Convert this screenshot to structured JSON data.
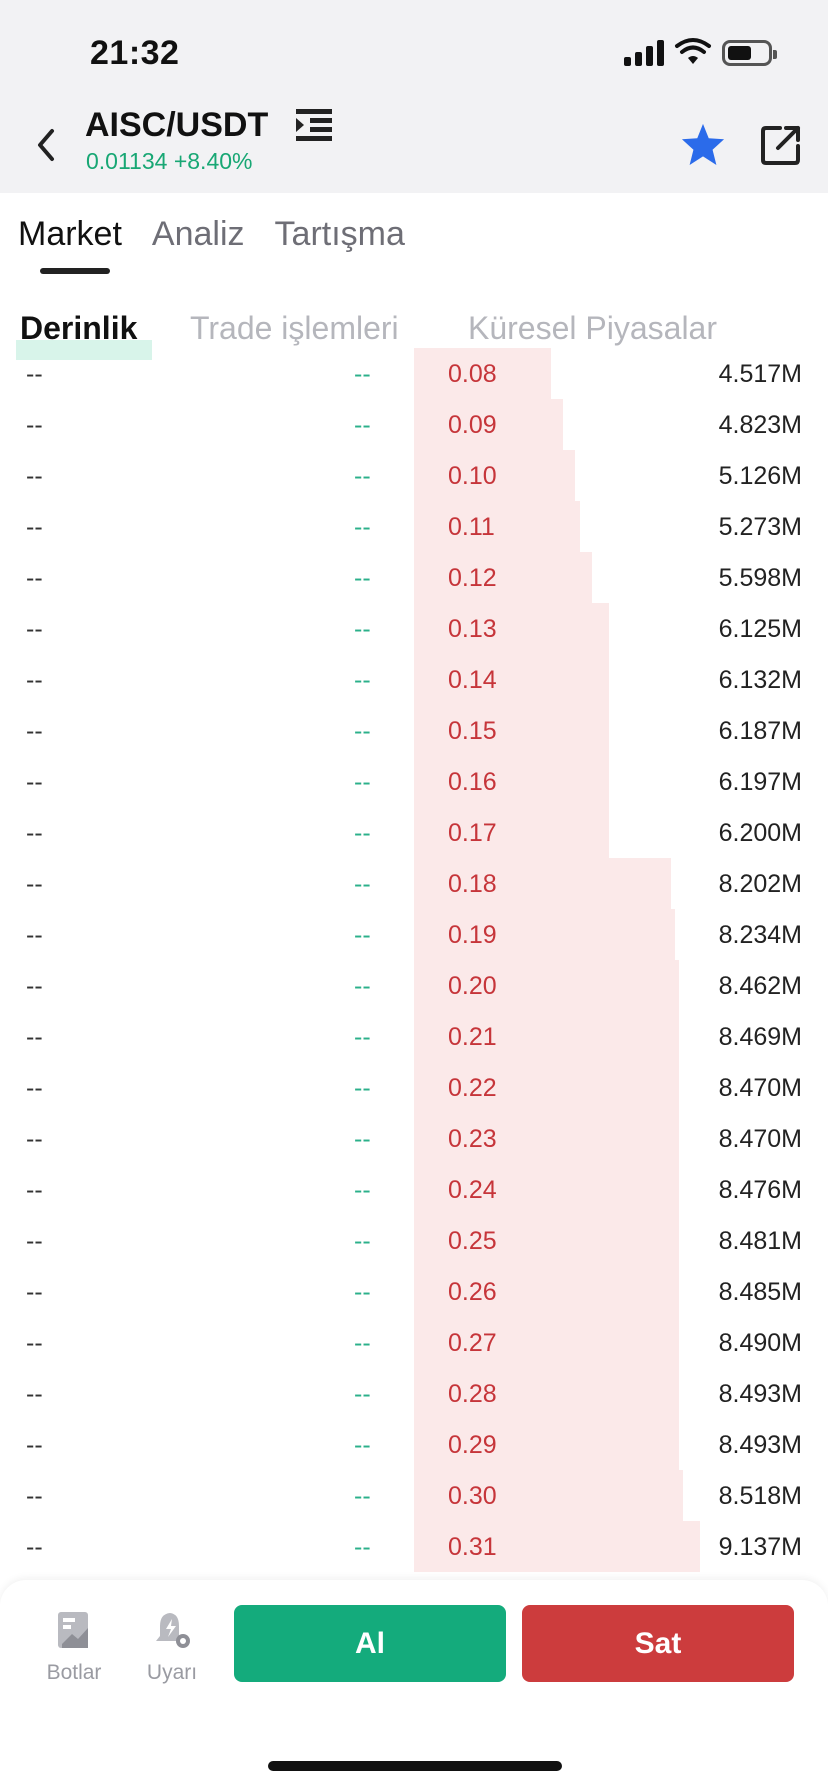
{
  "status_bar": {
    "time": "21:32"
  },
  "header": {
    "pair": "AISC/USDT",
    "price": "0.01134",
    "change": "+8.40%",
    "accent_green": "#18a774",
    "star_color": "#2b6bea"
  },
  "tabs": [
    {
      "label": "Market",
      "active": true
    },
    {
      "label": "Analiz",
      "active": false
    },
    {
      "label": "Tartışma",
      "active": false
    }
  ],
  "subtabs": [
    {
      "label": "Derinlik",
      "active": true
    },
    {
      "label": "Trade işlemleri",
      "active": false
    },
    {
      "label": "Küresel Piyasalar",
      "active": false
    }
  ],
  "depth": {
    "partial_top": {
      "price": "0.08",
      "amount": "4.517M"
    },
    "rows": [
      {
        "buy_amount": "--",
        "buy_price": "--",
        "price": "0.09",
        "amount": "4.823M",
        "depth_fill": 0.36
      },
      {
        "buy_amount": "--",
        "buy_price": "--",
        "price": "0.10",
        "amount": "5.126M",
        "depth_fill": 0.39
      },
      {
        "buy_amount": "--",
        "buy_price": "--",
        "price": "0.11",
        "amount": "5.273M",
        "depth_fill": 0.4
      },
      {
        "buy_amount": "--",
        "buy_price": "--",
        "price": "0.12",
        "amount": "5.598M",
        "depth_fill": 0.43
      },
      {
        "buy_amount": "--",
        "buy_price": "--",
        "price": "0.13",
        "amount": "6.125M",
        "depth_fill": 0.47
      },
      {
        "buy_amount": "--",
        "buy_price": "--",
        "price": "0.14",
        "amount": "6.132M",
        "depth_fill": 0.47
      },
      {
        "buy_amount": "--",
        "buy_price": "--",
        "price": "0.15",
        "amount": "6.187M",
        "depth_fill": 0.47
      },
      {
        "buy_amount": "--",
        "buy_price": "--",
        "price": "0.16",
        "amount": "6.197M",
        "depth_fill": 0.47
      },
      {
        "buy_amount": "--",
        "buy_price": "--",
        "price": "0.17",
        "amount": "6.200M",
        "depth_fill": 0.47
      },
      {
        "buy_amount": "--",
        "buy_price": "--",
        "price": "0.18",
        "amount": "8.202M",
        "depth_fill": 0.62
      },
      {
        "buy_amount": "--",
        "buy_price": "--",
        "price": "0.19",
        "amount": "8.234M",
        "depth_fill": 0.63
      },
      {
        "buy_amount": "--",
        "buy_price": "--",
        "price": "0.20",
        "amount": "8.462M",
        "depth_fill": 0.64
      },
      {
        "buy_amount": "--",
        "buy_price": "--",
        "price": "0.21",
        "amount": "8.469M",
        "depth_fill": 0.64
      },
      {
        "buy_amount": "--",
        "buy_price": "--",
        "price": "0.22",
        "amount": "8.470M",
        "depth_fill": 0.64
      },
      {
        "buy_amount": "--",
        "buy_price": "--",
        "price": "0.23",
        "amount": "8.470M",
        "depth_fill": 0.64
      },
      {
        "buy_amount": "--",
        "buy_price": "--",
        "price": "0.24",
        "amount": "8.476M",
        "depth_fill": 0.64
      },
      {
        "buy_amount": "--",
        "buy_price": "--",
        "price": "0.25",
        "amount": "8.481M",
        "depth_fill": 0.64
      },
      {
        "buy_amount": "--",
        "buy_price": "--",
        "price": "0.26",
        "amount": "8.485M",
        "depth_fill": 0.64
      },
      {
        "buy_amount": "--",
        "buy_price": "--",
        "price": "0.27",
        "amount": "8.490M",
        "depth_fill": 0.64
      },
      {
        "buy_amount": "--",
        "buy_price": "--",
        "price": "0.28",
        "amount": "8.493M",
        "depth_fill": 0.64
      },
      {
        "buy_amount": "--",
        "buy_price": "--",
        "price": "0.29",
        "amount": "8.493M",
        "depth_fill": 0.64
      },
      {
        "buy_amount": "--",
        "buy_price": "--",
        "price": "0.30",
        "amount": "8.518M",
        "depth_fill": 0.65
      },
      {
        "buy_amount": "--",
        "buy_price": "--",
        "price": "0.31",
        "amount": "9.137M",
        "depth_fill": 0.69
      }
    ],
    "sell_color": "#c6353a",
    "buy_color": "#2bb08a"
  },
  "bottom_bar": {
    "bots_label": "Botlar",
    "alert_label": "Uyarı",
    "buy_label": "Al",
    "sell_label": "Sat",
    "buy_color": "#14ab7c",
    "sell_color": "#cc3c3d"
  }
}
